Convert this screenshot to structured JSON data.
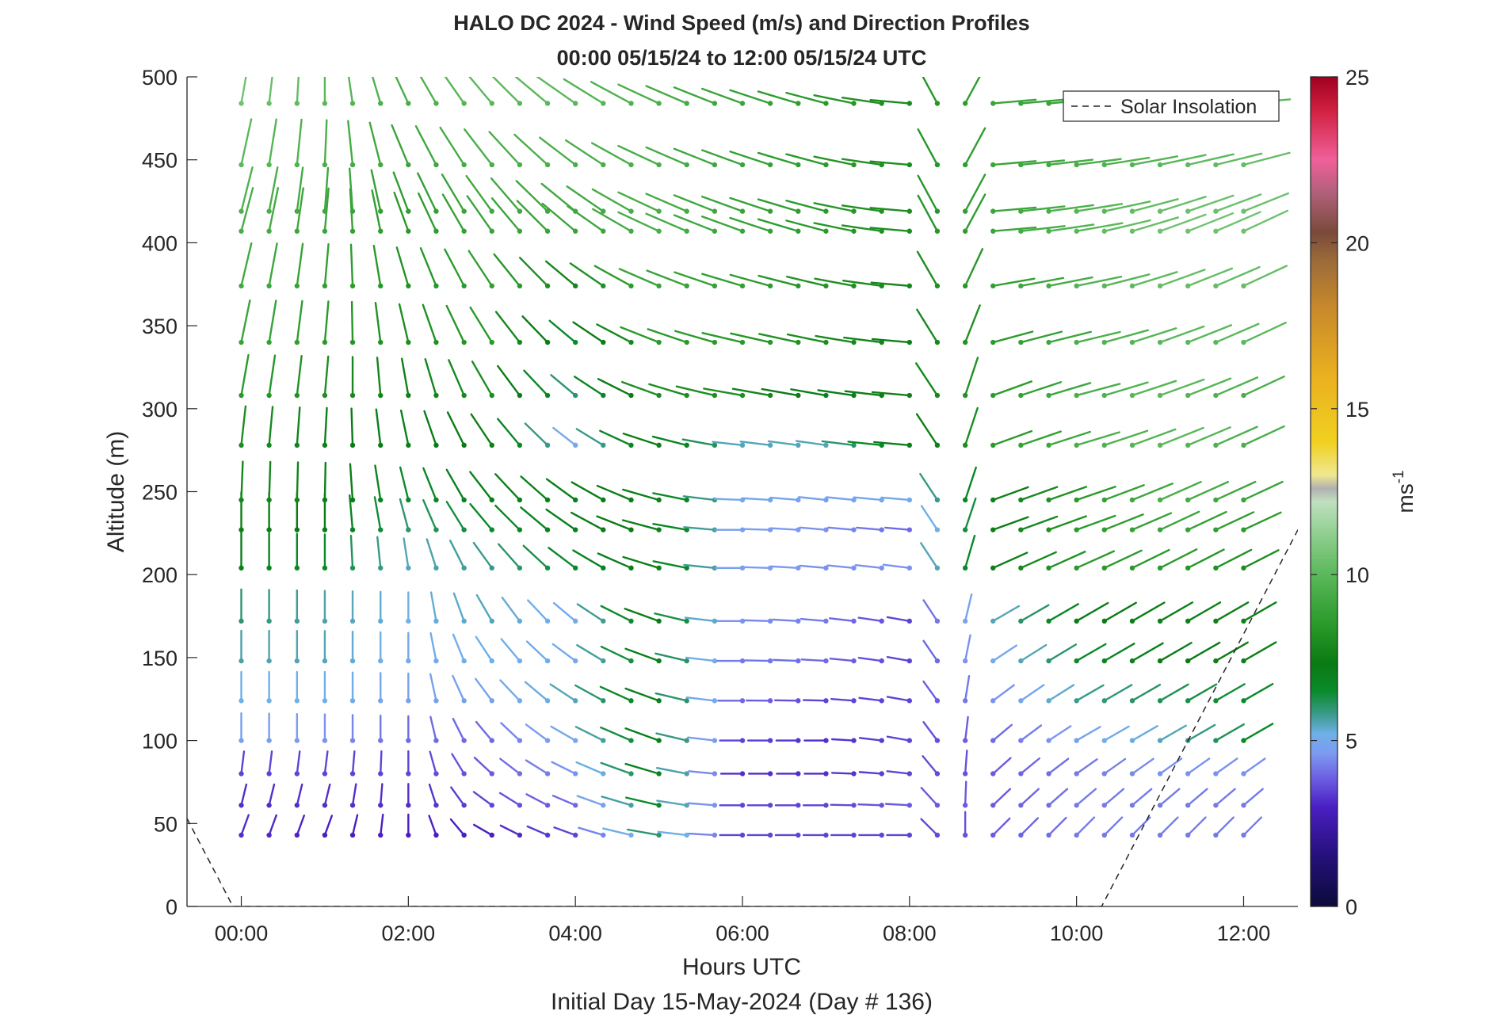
{
  "chart_data": {
    "type": "quiver",
    "title": "HALO DC 2024 - Wind Speed (m/s) and Direction Profiles",
    "subtitle": "00:00 05/15/24 to 12:00 05/15/24  UTC",
    "xlabel": "Hours UTC",
    "xlabel2": "Initial Day 15-May-2024 (Day # 136)",
    "ylabel": "Altitude (m)",
    "colorbar_label": "ms",
    "colorbar_label_exp": "-1",
    "xlim": [
      -0.65,
      12.65
    ],
    "ylim": [
      0,
      500
    ],
    "x_ticks": [
      0,
      2,
      4,
      6,
      8,
      10,
      12
    ],
    "x_tick_labels": [
      "00:00",
      "02:00",
      "04:00",
      "06:00",
      "08:00",
      "10:00",
      "12:00"
    ],
    "y_ticks": [
      0,
      50,
      100,
      150,
      200,
      250,
      300,
      350,
      400,
      450,
      500
    ],
    "y_tick_labels": [
      "0",
      "50",
      "100",
      "150",
      "200",
      "250",
      "300",
      "350",
      "400",
      "450",
      "500"
    ],
    "colorbar_range": [
      0,
      25
    ],
    "colorbar_ticks": [
      0,
      5,
      10,
      15,
      20,
      25
    ],
    "colorbar_tick_labels": [
      "0",
      "5",
      "10",
      "15",
      "20",
      "25"
    ],
    "colormap": [
      [
        0,
        "#0b0b3a"
      ],
      [
        1.5,
        "#25107a"
      ],
      [
        3,
        "#4a1fc2"
      ],
      [
        3.8,
        "#6a5ae0"
      ],
      [
        4.6,
        "#7d9af0"
      ],
      [
        5.2,
        "#6fb0e8"
      ],
      [
        5.8,
        "#3a9a8a"
      ],
      [
        6.5,
        "#0a8a2a"
      ],
      [
        7.3,
        "#0a7a14"
      ],
      [
        8.5,
        "#2a9a2a"
      ],
      [
        10,
        "#5ab85a"
      ],
      [
        11.2,
        "#8fce8f"
      ],
      [
        12.2,
        "#bfe0bf"
      ],
      [
        12.6,
        "#b0b0b0"
      ],
      [
        13,
        "#f0e890"
      ],
      [
        14,
        "#f0d020"
      ],
      [
        16,
        "#eab020"
      ],
      [
        18,
        "#c88a2a"
      ],
      [
        19.5,
        "#9a6a3a"
      ],
      [
        20.3,
        "#7a4a3a"
      ],
      [
        21.5,
        "#b0607a"
      ],
      [
        22.5,
        "#f0609a"
      ],
      [
        24,
        "#d02040"
      ],
      [
        25,
        "#a00020"
      ]
    ],
    "legend": {
      "label": "Solar Insolation",
      "position": "top-right",
      "style": "dashed"
    },
    "solar_insolation": {
      "name": "Solar Insolation",
      "x": [
        -0.65,
        -0.1,
        10.3,
        12.65
      ],
      "y": [
        53,
        0,
        0,
        227
      ]
    },
    "arrow_times": [
      0,
      0.333,
      0.667,
      1,
      1.333,
      1.667,
      2,
      2.333,
      2.667,
      3,
      3.333,
      3.667,
      4,
      4.333,
      4.667,
      5,
      5.333,
      5.667,
      6,
      6.333,
      6.667,
      7,
      7.333,
      7.667,
      8,
      8.333,
      8.667,
      9,
      9.333,
      9.667,
      10,
      10.333,
      10.667,
      11,
      11.333,
      11.667,
      12
    ],
    "arrow_altitudes": [
      43,
      61,
      80,
      100,
      124,
      148,
      172,
      204,
      227,
      245,
      278,
      308,
      340,
      374,
      407,
      419,
      447,
      484
    ],
    "time_anchors": [
      0,
      1,
      2,
      3,
      4,
      5,
      6,
      7,
      8,
      9,
      10,
      11,
      12
    ],
    "direction_keypoints": [
      {
        "altitude": 43,
        "dir_deg": [
          200,
          200,
          180,
          120,
          110,
          100,
          90,
          90,
          90,
          225,
          225,
          225,
          225
        ]
      },
      {
        "altitude": 100,
        "dir_deg": [
          180,
          180,
          180,
          140,
          120,
          110,
          90,
          90,
          100,
          230,
          240,
          240,
          240
        ]
      },
      {
        "altitude": 172,
        "dir_deg": [
          180,
          180,
          180,
          150,
          130,
          110,
          90,
          95,
          100,
          240,
          240,
          240,
          240
        ]
      },
      {
        "altitude": 227,
        "dir_deg": [
          180,
          180,
          165,
          140,
          125,
          105,
          90,
          95,
          95,
          250,
          250,
          245,
          245
        ]
      },
      {
        "altitude": 308,
        "dir_deg": [
          190,
          185,
          170,
          150,
          130,
          110,
          100,
          100,
          95,
          250,
          255,
          250,
          245
        ]
      },
      {
        "altitude": 407,
        "dir_deg": [
          195,
          185,
          160,
          145,
          130,
          115,
          110,
          105,
          95,
          265,
          260,
          250,
          245
        ]
      },
      {
        "altitude": 484,
        "dir_deg": [
          190,
          180,
          155,
          140,
          125,
          115,
          110,
          105,
          95,
          265,
          265,
          265,
          265
        ]
      }
    ],
    "speed_keypoints": [
      {
        "altitude": 43,
        "speed": [
          3.2,
          3,
          3,
          3,
          3.5,
          6,
          3.5,
          3.5,
          3.5,
          3.8,
          4.2,
          4.2,
          4.2
        ]
      },
      {
        "altitude": 61,
        "speed": [
          3.2,
          3.2,
          3.2,
          3.5,
          4,
          6.5,
          3.5,
          3.5,
          3.8,
          3.8,
          4.2,
          4.2,
          4.2
        ]
      },
      {
        "altitude": 80,
        "speed": [
          3.5,
          3.5,
          3.5,
          3.8,
          4.5,
          6.8,
          3.2,
          3.2,
          3.5,
          3.8,
          4.2,
          4.5,
          4.5
        ]
      },
      {
        "altitude": 100,
        "speed": [
          4.8,
          4.5,
          4,
          4,
          5,
          7,
          3.5,
          3.2,
          3.5,
          4,
          4.8,
          5.5,
          6.5
        ]
      },
      {
        "altitude": 124,
        "speed": [
          5.2,
          5.2,
          4.8,
          4.8,
          5.5,
          7,
          4,
          3.5,
          3.5,
          4.5,
          5.8,
          6.2,
          6.5
        ]
      },
      {
        "altitude": 148,
        "speed": [
          5.6,
          5.5,
          5,
          5.2,
          5,
          7,
          4.2,
          4,
          3.5,
          5,
          6.5,
          7.2,
          7.5
        ]
      },
      {
        "altitude": 172,
        "speed": [
          6,
          5.6,
          5.2,
          5.5,
          5,
          7.2,
          4.5,
          4.2,
          3.5,
          5.5,
          7.2,
          7.5,
          7.5
        ]
      },
      {
        "altitude": 204,
        "speed": [
          7,
          6.5,
          5.5,
          5.8,
          6.5,
          7.5,
          4.8,
          4.5,
          4.5,
          7.5,
          8.5,
          8.5,
          8
        ]
      },
      {
        "altitude": 227,
        "speed": [
          7.5,
          7.2,
          6,
          6.5,
          7,
          7.5,
          4.8,
          4.5,
          4,
          7.5,
          8.5,
          9,
          8.5
        ]
      },
      {
        "altitude": 245,
        "speed": [
          7.8,
          7.5,
          6.5,
          7,
          7,
          7.5,
          5,
          4.8,
          5,
          7.5,
          8.5,
          9.5,
          9
        ]
      },
      {
        "altitude": 278,
        "speed": [
          8,
          7.5,
          7,
          7.5,
          5,
          7.5,
          5.5,
          5.5,
          7,
          8.5,
          9.5,
          10,
          9.5
        ]
      },
      {
        "altitude": 308,
        "speed": [
          8.5,
          8,
          7.5,
          8,
          6,
          8,
          8,
          7,
          7.5,
          8.5,
          9.5,
          10,
          9.5
        ]
      },
      {
        "altitude": 340,
        "speed": [
          9,
          8.5,
          8,
          8.5,
          6.5,
          8.5,
          8.5,
          8,
          7.5,
          8.5,
          9.5,
          10,
          10
        ]
      },
      {
        "altitude": 407,
        "speed": [
          9.5,
          9,
          8.5,
          9,
          9,
          9.5,
          9,
          8.5,
          8,
          9,
          10,
          10.5,
          10.5
        ]
      },
      {
        "altitude": 484,
        "speed": [
          10.5,
          10,
          9.5,
          10,
          10,
          9.5,
          9,
          8.5,
          8,
          9,
          9,
          9.5,
          10
        ]
      }
    ]
  }
}
